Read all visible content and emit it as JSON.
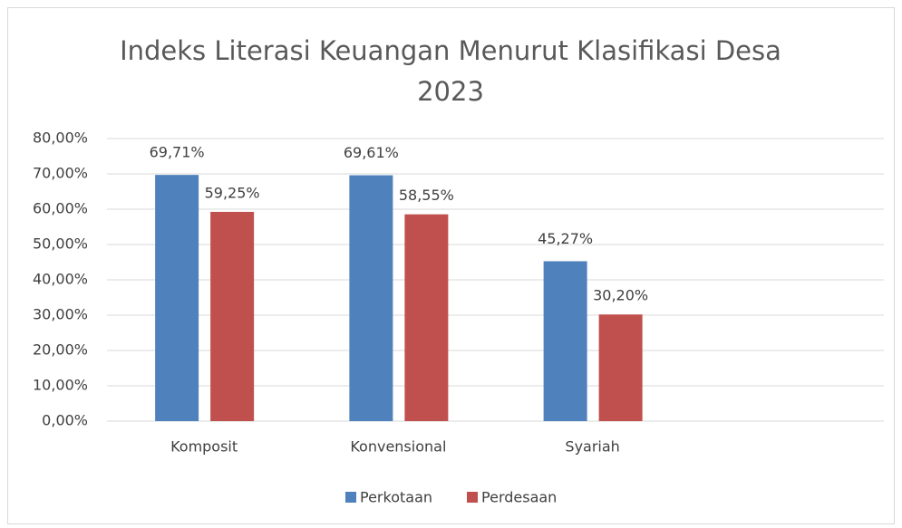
{
  "chart_data": {
    "type": "bar",
    "title": "Indeks Literasi Keuangan Menurut Klasifikasi Desa 2023",
    "categories": [
      "Komposit",
      "Konvensional",
      "Syariah",
      null
    ],
    "series": [
      {
        "name": "Perkotaan",
        "color": "#4f81bd",
        "values": [
          69.71,
          69.61,
          45.27,
          null
        ],
        "value_labels": [
          "69,71%",
          "69,61%",
          "45,27%",
          null
        ]
      },
      {
        "name": "Perdesaan",
        "color": "#c0504d",
        "values": [
          59.25,
          58.55,
          30.2,
          null
        ],
        "value_labels": [
          "59,25%",
          "58,55%",
          "30,20%",
          null
        ]
      }
    ],
    "ylim": [
      0,
      80
    ],
    "yticks": [
      {
        "value": 0,
        "label": "0,00%"
      },
      {
        "value": 10,
        "label": "10,00%"
      },
      {
        "value": 20,
        "label": "20,00%"
      },
      {
        "value": 30,
        "label": "30,00%"
      },
      {
        "value": 40,
        "label": "40,00%"
      },
      {
        "value": 50,
        "label": "50,00%"
      },
      {
        "value": 60,
        "label": "60,00%"
      },
      {
        "value": 70,
        "label": "70,00%"
      },
      {
        "value": 80,
        "label": "80,00%"
      }
    ],
    "grid": true,
    "legend": "bottom"
  }
}
